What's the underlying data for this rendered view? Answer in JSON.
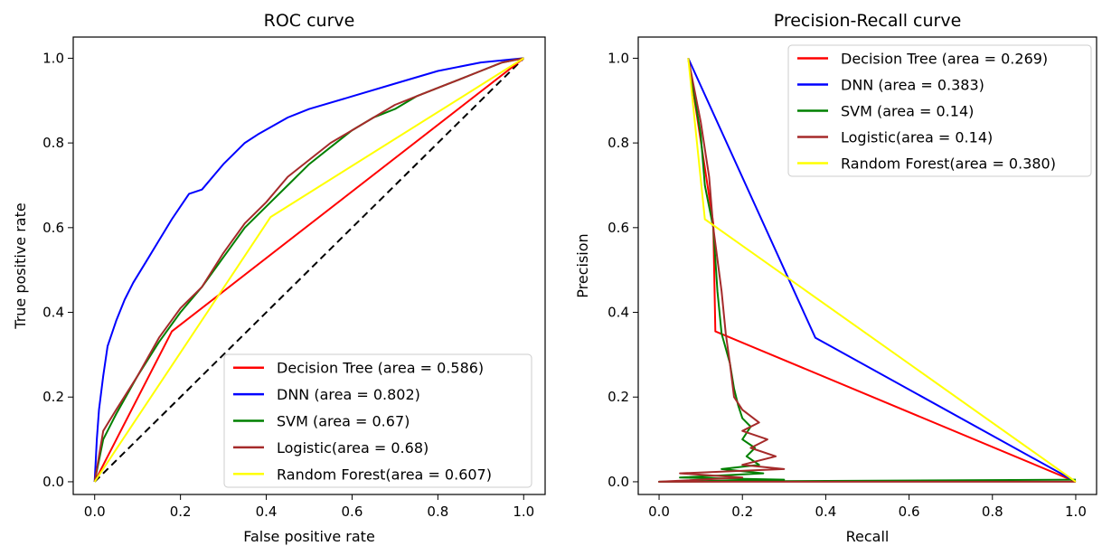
{
  "chart_data": [
    {
      "type": "line",
      "title": "ROC curve",
      "xlabel": "False positive rate",
      "ylabel": "True positive rate",
      "xlim": [
        -0.05,
        1.05
      ],
      "ylim": [
        -0.03,
        1.05
      ],
      "xticks": [
        "0.0",
        "0.2",
        "0.4",
        "0.6",
        "0.8",
        "1.0"
      ],
      "yticks": [
        "0.0",
        "0.2",
        "0.4",
        "0.6",
        "0.8",
        "1.0"
      ],
      "legend_position": "lower-right",
      "series": [
        {
          "name": "Decision Tree (area = 0.586)",
          "color": "#ff0000",
          "x": [
            0,
            0.18,
            1
          ],
          "y": [
            0,
            0.355,
            1
          ]
        },
        {
          "name": "DNN (area = 0.802)",
          "color": "#0000ff",
          "x": [
            0,
            0.005,
            0.01,
            0.02,
            0.03,
            0.05,
            0.07,
            0.09,
            0.12,
            0.15,
            0.18,
            0.2,
            0.22,
            0.25,
            0.3,
            0.35,
            0.38,
            0.45,
            0.5,
            0.6,
            0.7,
            0.8,
            0.9,
            1.0
          ],
          "y": [
            0,
            0.1,
            0.17,
            0.25,
            0.32,
            0.38,
            0.43,
            0.47,
            0.52,
            0.57,
            0.62,
            0.65,
            0.68,
            0.69,
            0.75,
            0.8,
            0.82,
            0.86,
            0.88,
            0.91,
            0.94,
            0.97,
            0.99,
            1.0
          ]
        },
        {
          "name": "SVM (area = 0.67)",
          "color": "#008000",
          "x": [
            0,
            0.02,
            0.05,
            0.1,
            0.15,
            0.2,
            0.25,
            0.3,
            0.35,
            0.4,
            0.45,
            0.5,
            0.55,
            0.6,
            0.65,
            0.7,
            0.75,
            0.8,
            0.85,
            0.9,
            0.95,
            1.0
          ],
          "y": [
            0,
            0.1,
            0.16,
            0.25,
            0.33,
            0.4,
            0.46,
            0.53,
            0.6,
            0.65,
            0.7,
            0.75,
            0.79,
            0.83,
            0.86,
            0.88,
            0.91,
            0.93,
            0.95,
            0.97,
            0.99,
            1.0
          ]
        },
        {
          "name": "Logistic(area = 0.68)",
          "color": "#a52a2a",
          "x": [
            0,
            0.02,
            0.05,
            0.1,
            0.15,
            0.2,
            0.25,
            0.3,
            0.35,
            0.4,
            0.45,
            0.5,
            0.55,
            0.6,
            0.65,
            0.7,
            0.75,
            0.8,
            0.85,
            0.9,
            0.95,
            1.0
          ],
          "y": [
            0,
            0.12,
            0.17,
            0.25,
            0.34,
            0.41,
            0.46,
            0.54,
            0.61,
            0.66,
            0.72,
            0.76,
            0.8,
            0.83,
            0.86,
            0.89,
            0.91,
            0.93,
            0.95,
            0.97,
            0.99,
            1.0
          ]
        },
        {
          "name": "Random Forest(area = 0.607)",
          "color": "#ffff00",
          "x": [
            0,
            0.41,
            1
          ],
          "y": [
            0,
            0.625,
            1
          ]
        }
      ],
      "reference_line": {
        "x": [
          0,
          1
        ],
        "y": [
          0,
          1
        ],
        "color": "#000000",
        "style": "dashed"
      }
    },
    {
      "type": "line",
      "title": "Precision-Recall curve",
      "xlabel": "Recall",
      "ylabel": "Precision",
      "xlim": [
        -0.05,
        1.05
      ],
      "ylim": [
        -0.03,
        1.05
      ],
      "xticks": [
        "0.0",
        "0.2",
        "0.4",
        "0.6",
        "0.8",
        "1.0"
      ],
      "yticks": [
        "0.0",
        "0.2",
        "0.4",
        "0.6",
        "0.8",
        "1.0"
      ],
      "legend_position": "upper-right",
      "series": [
        {
          "name": "Decision Tree (area = 0.269)",
          "color": "#ff0000",
          "x": [
            0.07,
            0.13,
            0.135,
            1.0
          ],
          "y": [
            1.0,
            0.61,
            0.355,
            0.0
          ]
        },
        {
          "name": "DNN (area = 0.383)",
          "color": "#0000ff",
          "x": [
            0.07,
            0.375,
            1.0
          ],
          "y": [
            1.0,
            0.34,
            0.0
          ]
        },
        {
          "name": "SVM (area = 0.14)",
          "color": "#008000",
          "x": [
            0.07,
            0.1,
            0.11,
            0.13,
            0.14,
            0.15,
            0.17,
            0.18,
            0.19,
            0.2,
            0.22,
            0.2,
            0.23,
            0.21,
            0.24,
            0.15,
            0.25,
            0.05,
            0.3,
            0.0,
            1.0
          ],
          "y": [
            1.0,
            0.82,
            0.7,
            0.6,
            0.45,
            0.35,
            0.28,
            0.22,
            0.18,
            0.15,
            0.13,
            0.1,
            0.08,
            0.06,
            0.04,
            0.03,
            0.02,
            0.01,
            0.005,
            0.0,
            0.005
          ]
        },
        {
          "name": "Logistic(area = 0.14)",
          "color": "#a52a2a",
          "x": [
            0.07,
            0.1,
            0.12,
            0.13,
            0.15,
            0.16,
            0.17,
            0.18,
            0.2,
            0.24,
            0.2,
            0.26,
            0.22,
            0.28,
            0.2,
            0.3,
            0.05,
            0.2,
            0.0,
            1.0
          ],
          "y": [
            1.0,
            0.85,
            0.72,
            0.6,
            0.45,
            0.35,
            0.28,
            0.2,
            0.17,
            0.14,
            0.12,
            0.1,
            0.08,
            0.06,
            0.04,
            0.03,
            0.02,
            0.01,
            0.0,
            0.0
          ]
        },
        {
          "name": "Random Forest(area = 0.380)",
          "color": "#ffff00",
          "x": [
            0.07,
            0.11,
            1.0
          ],
          "y": [
            1.0,
            0.62,
            0.0
          ]
        }
      ]
    }
  ]
}
